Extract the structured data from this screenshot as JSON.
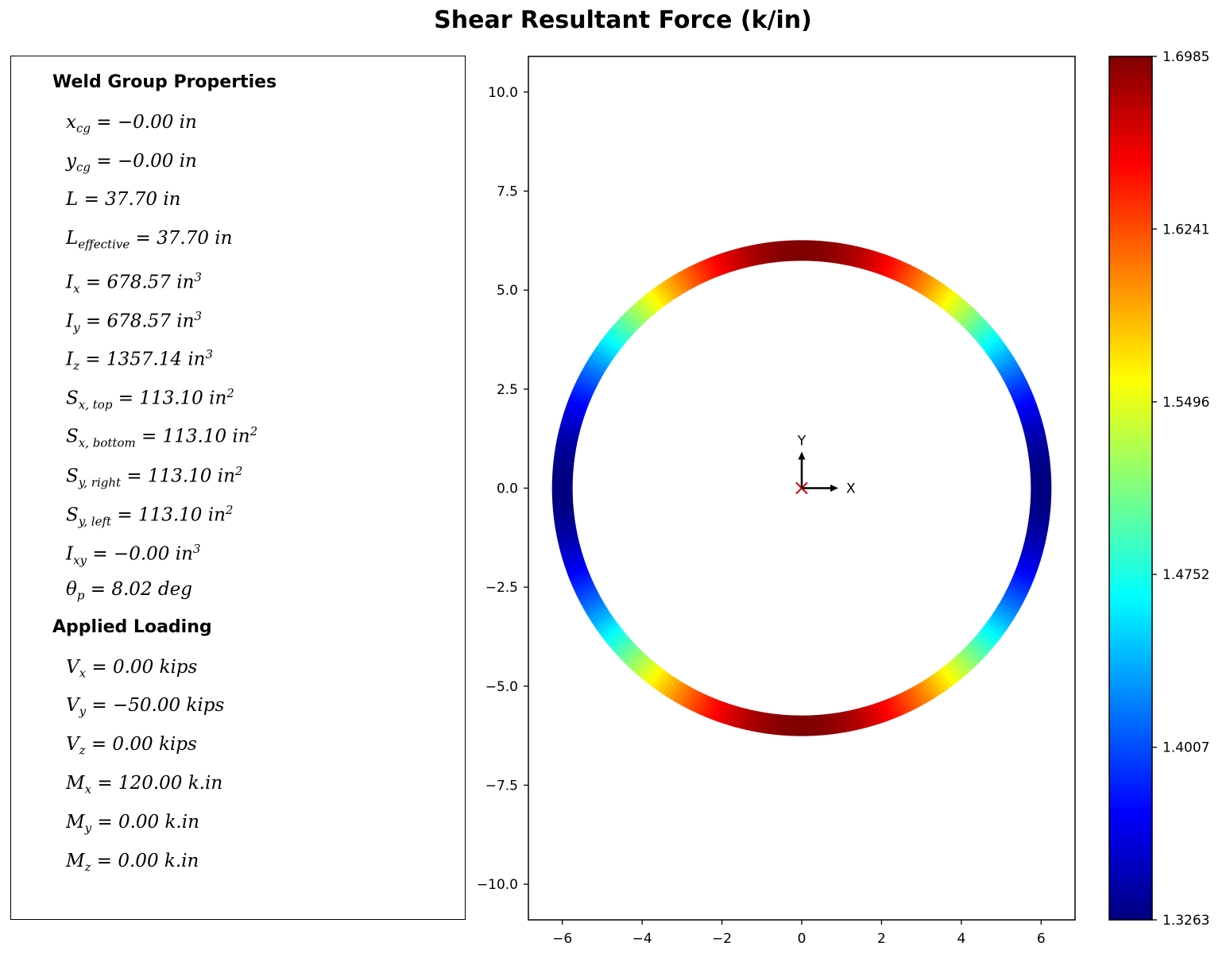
{
  "chart_data": {
    "type": "scatter",
    "title": "Shear Resultant Force (k/in)",
    "xlim": [
      -6.85,
      6.85
    ],
    "ylim": [
      -10.9,
      10.9
    ],
    "x_ticks": [
      -6,
      -4,
      -2,
      0,
      2,
      4,
      6
    ],
    "x_tick_labels": [
      "−6",
      "−4",
      "−2",
      "0",
      "2",
      "4",
      "6"
    ],
    "y_ticks": [
      10,
      7.5,
      5,
      2.5,
      0,
      -2.5,
      -5,
      -7.5,
      -10
    ],
    "y_tick_labels": [
      "10.0",
      "7.5",
      "5.0",
      "2.5",
      "0.0",
      "−2.5",
      "−5.0",
      "−7.5",
      "−10.0"
    ],
    "weld": {
      "shape": "circle",
      "center": [
        0,
        0
      ],
      "radius": 6.0
    },
    "resultant_min": 1.3263,
    "resultant_max": 1.6985,
    "colormap": "jet",
    "colorbar_ticks": [
      "1.6985",
      "1.6241",
      "1.5496",
      "1.4752",
      "1.4007",
      "1.3263"
    ],
    "cg_marker": {
      "x": 0,
      "y": 0,
      "color": "#dd0000"
    },
    "axis_labels": {
      "x": "X",
      "y": "Y"
    }
  },
  "properties": {
    "header": "Weld Group Properties",
    "items": [
      {
        "sym": "x",
        "sub": "cg",
        "sup": "",
        "value": " = −0.00   in"
      },
      {
        "sym": "y",
        "sub": "cg",
        "sup": "",
        "value": " = −0.00   in"
      },
      {
        "sym": "L",
        "sub": "",
        "sup": "",
        "value": " = 37.70   in"
      },
      {
        "sym": "L",
        "sub": "effective",
        "sup": "",
        "value": " = 37.70   in"
      },
      {
        "sym": "I",
        "sub": "x",
        "sup": "3",
        "value": " = 678.57   in"
      },
      {
        "sym": "I",
        "sub": "y",
        "sup": "3",
        "value": " = 678.57   in"
      },
      {
        "sym": "I",
        "sub": "z",
        "sup": "3",
        "value": " = 1357.14   in"
      },
      {
        "sym": "S",
        "sub": "x, top",
        "sup": "2",
        "value": " = 113.10   in"
      },
      {
        "sym": "S",
        "sub": "x, bottom",
        "sup": "2",
        "value": " = 113.10   in"
      },
      {
        "sym": "S",
        "sub": "y, right",
        "sup": "2",
        "value": " = 113.10   in"
      },
      {
        "sym": "S",
        "sub": "y, left",
        "sup": "2",
        "value": " = 113.10   in"
      },
      {
        "sym": "I",
        "sub": "xy",
        "sup": "3",
        "value": " = −0.00   in"
      },
      {
        "sym": "θ",
        "sub": "p",
        "sup": "",
        "value": " = 8.02   deg"
      }
    ]
  },
  "loading": {
    "header": "Applied Loading",
    "items": [
      {
        "sym": "V",
        "sub": "x",
        "sup": "",
        "value": " = 0.00   kips"
      },
      {
        "sym": "V",
        "sub": "y",
        "sup": "",
        "value": " = −50.00   kips"
      },
      {
        "sym": "V",
        "sub": "z",
        "sup": "",
        "value": " = 0.00   kips"
      },
      {
        "sym": "M",
        "sub": "x",
        "sup": "",
        "value": " = 120.00   k.in"
      },
      {
        "sym": "M",
        "sub": "y",
        "sup": "",
        "value": " = 0.00   k.in"
      },
      {
        "sym": "M",
        "sub": "z",
        "sup": "",
        "value": " = 0.00   k.in"
      }
    ]
  }
}
